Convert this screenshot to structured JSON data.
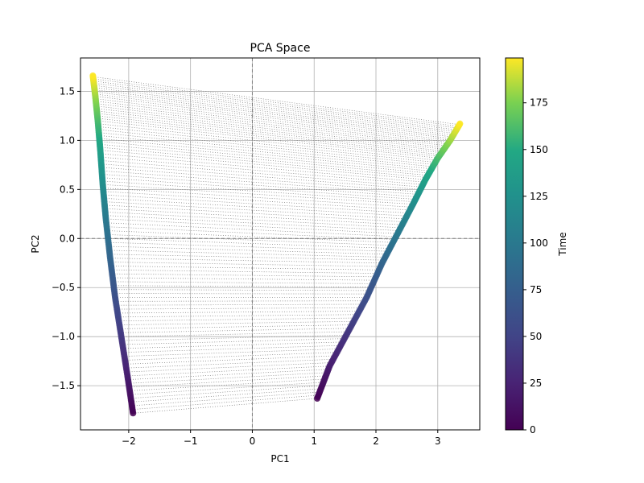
{
  "chart_data": {
    "type": "scatter",
    "title": "PCA Space",
    "xlabel": "PC1",
    "ylabel": "PC2",
    "xlim": [
      -2.78,
      3.68
    ],
    "ylim": [
      -1.95,
      1.84
    ],
    "xticks": [
      -2,
      -1,
      0,
      1,
      2,
      3
    ],
    "yticks": [
      -1.5,
      -1.0,
      -0.5,
      0.0,
      0.5,
      1.0,
      1.5
    ],
    "xtick_labels": [
      "−2",
      "−1",
      "0",
      "1",
      "2",
      "3"
    ],
    "ytick_labels": [
      "−1.5",
      "−1.0",
      "−0.5",
      "0.0",
      "0.5",
      "1.0",
      "1.5"
    ],
    "grid": true,
    "reference_lines": {
      "x": 0,
      "y": 0,
      "style": "dashed"
    },
    "connector_style": "dotted gray lines linking paired points at the same time",
    "colormap": "viridis",
    "color_by": "Time",
    "time_range": [
      0,
      199
    ],
    "colorbar": {
      "label": "Time",
      "ticks": [
        0,
        25,
        50,
        75,
        100,
        125,
        150,
        175
      ],
      "tick_labels": [
        "0",
        "25",
        "50",
        "75",
        "100",
        "125",
        "150",
        "175"
      ],
      "range": [
        0,
        199
      ]
    },
    "series": [
      {
        "times": [
          0,
          20,
          40,
          60,
          80,
          100,
          120,
          140,
          160,
          180,
          199
        ],
        "x": [
          -1.93,
          -2.02,
          -2.12,
          -2.22,
          -2.3,
          -2.37,
          -2.42,
          -2.46,
          -2.5,
          -2.54,
          -2.58
        ],
        "y": [
          -1.78,
          -1.4,
          -1.0,
          -0.6,
          -0.2,
          0.2,
          0.55,
          0.9,
          1.2,
          1.45,
          1.66
        ]
      },
      {
        "times": [
          0,
          20,
          40,
          60,
          80,
          100,
          120,
          140,
          160,
          180,
          199
        ],
        "x": [
          1.05,
          1.25,
          1.55,
          1.85,
          2.1,
          2.35,
          2.6,
          2.8,
          3.0,
          3.2,
          3.36
        ],
        "y": [
          -1.63,
          -1.3,
          -0.95,
          -0.6,
          -0.25,
          0.05,
          0.35,
          0.6,
          0.82,
          1.0,
          1.17
        ]
      }
    ]
  }
}
